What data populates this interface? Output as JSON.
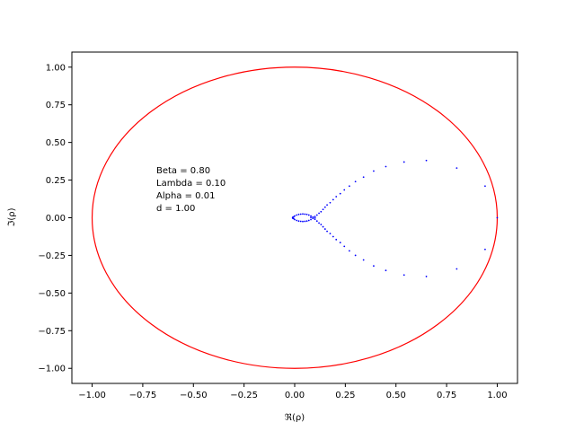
{
  "chart_data": {
    "type": "scatter",
    "title": "",
    "xlabel": "ℜ(ρ)",
    "ylabel": "ℑ(ρ)",
    "xlim": [
      -1.1,
      1.1
    ],
    "ylim": [
      -1.1,
      1.1
    ],
    "xticks": [
      "−1.00",
      "−0.75",
      "−0.50",
      "−0.25",
      "0.00",
      "0.25",
      "0.50",
      "0.75",
      "1.00"
    ],
    "yticks": [
      "−1.00",
      "−0.75",
      "−0.50",
      "−0.25",
      "0.00",
      "0.25",
      "0.50",
      "0.75",
      "1.00"
    ],
    "xtick_values": [
      -1.0,
      -0.75,
      -0.5,
      -0.25,
      0.0,
      0.25,
      0.5,
      0.75,
      1.0
    ],
    "ytick_values": [
      -1.0,
      -0.75,
      -0.5,
      -0.25,
      0.0,
      0.25,
      0.5,
      0.75,
      1.0
    ],
    "grid": false,
    "unit_circle": {
      "radius": 1.0,
      "color": "#ff0000"
    },
    "point_color": "#0000ff",
    "annotation": [
      "Beta = 0.80",
      "Lambda = 0.10",
      "Alpha = 0.01",
      "d = 1.00"
    ],
    "series": [
      {
        "x": [
          1.0,
          0.94,
          0.94,
          0.8,
          0.8,
          0.65,
          0.65,
          0.54,
          0.54,
          0.45,
          0.45,
          0.39,
          0.39,
          0.34,
          0.34,
          0.3,
          0.3,
          0.27,
          0.27,
          0.245,
          0.245,
          0.225,
          0.225,
          0.205,
          0.205,
          0.19,
          0.19,
          0.175,
          0.175,
          0.16,
          0.16,
          0.15,
          0.15,
          0.14,
          0.14,
          0.13,
          0.13,
          0.12,
          0.12,
          0.11,
          0.11,
          0.1,
          0.1,
          0.09,
          0.09,
          0.08,
          0.08,
          0.07,
          0.07,
          0.06,
          0.06,
          0.05,
          0.05,
          0.04,
          0.04,
          0.03,
          0.03,
          0.02,
          0.02,
          0.01,
          0.01,
          0.0,
          0.0,
          -0.005,
          -0.005,
          -0.01,
          -0.01,
          -0.01,
          0.1,
          0.08
        ],
        "y": [
          0.0,
          0.21,
          -0.21,
          0.33,
          -0.34,
          0.38,
          -0.39,
          0.37,
          -0.38,
          0.34,
          -0.35,
          0.31,
          -0.32,
          0.27,
          -0.28,
          0.24,
          -0.25,
          0.21,
          -0.22,
          0.185,
          -0.19,
          0.16,
          -0.165,
          0.14,
          -0.145,
          0.12,
          -0.125,
          0.1,
          -0.105,
          0.085,
          -0.09,
          0.07,
          -0.075,
          0.055,
          -0.06,
          0.04,
          -0.045,
          0.03,
          -0.035,
          0.018,
          -0.022,
          0.008,
          -0.01,
          -0.004,
          0.004,
          -0.012,
          0.012,
          -0.018,
          0.018,
          -0.022,
          0.022,
          -0.024,
          0.024,
          -0.025,
          0.025,
          -0.024,
          0.024,
          -0.022,
          0.022,
          -0.018,
          0.018,
          -0.012,
          0.012,
          -0.006,
          0.006,
          0.0,
          0.003,
          -0.003,
          0.0,
          0.002
        ]
      }
    ]
  }
}
